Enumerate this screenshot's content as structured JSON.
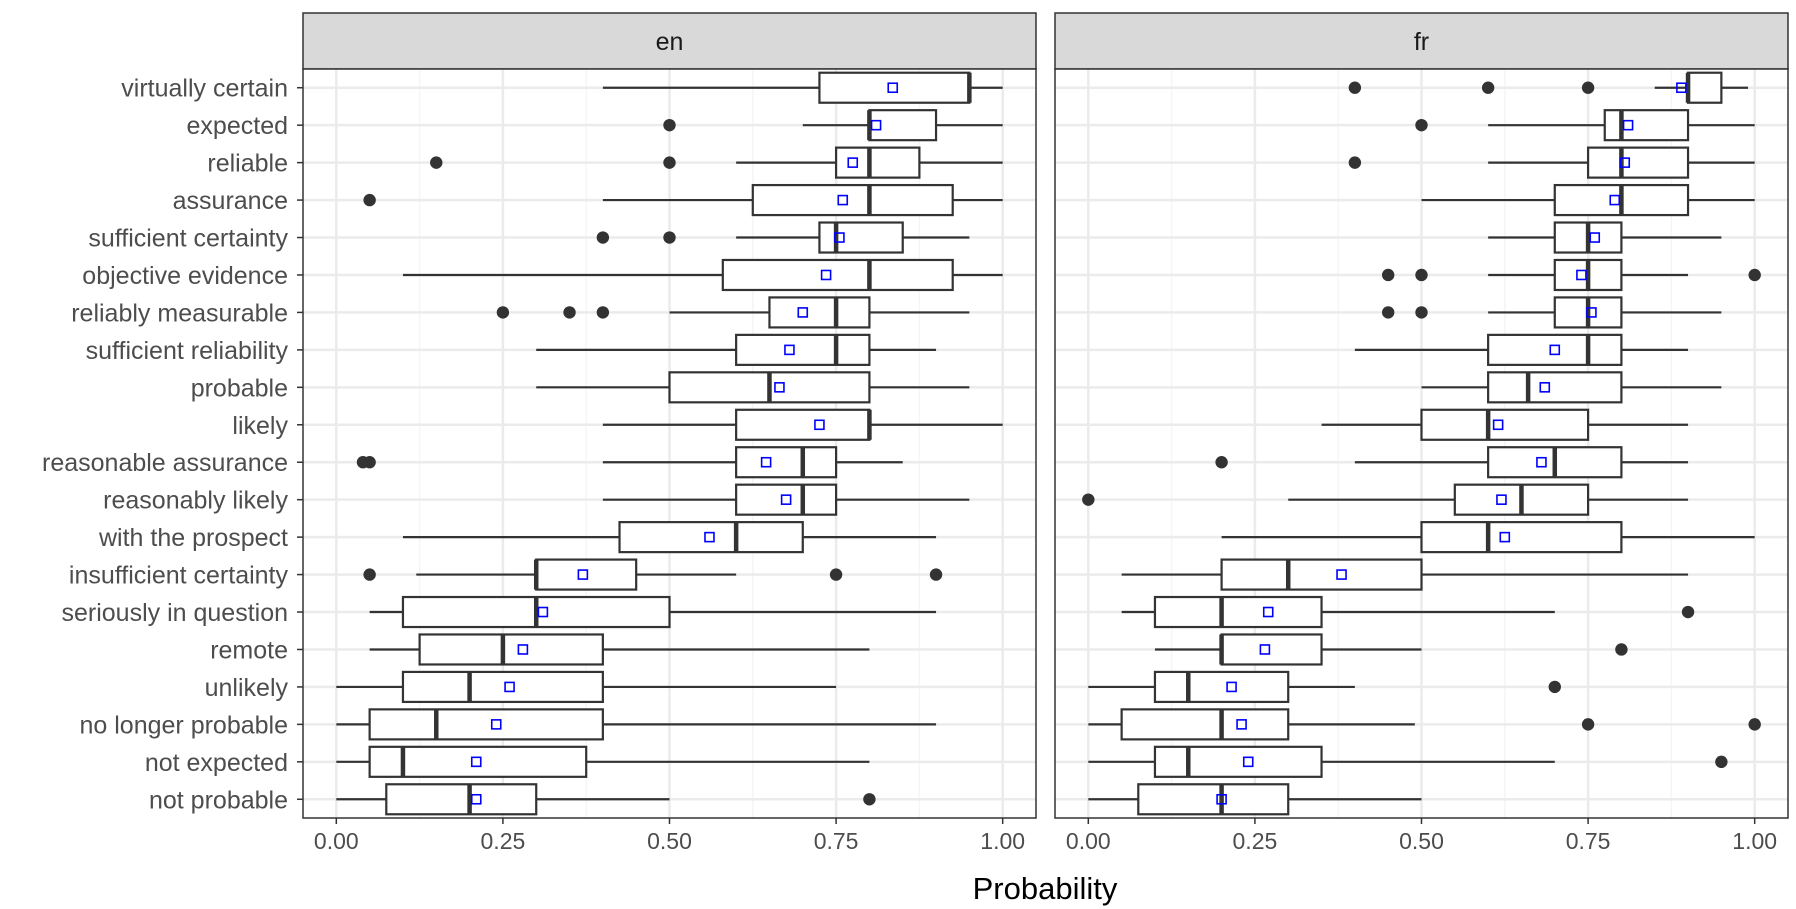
{
  "chart_data": {
    "type": "boxplot",
    "xlabel": "Probability",
    "xlim": [
      0,
      1
    ],
    "x_ticks": [
      0,
      0.25,
      0.5,
      0.75,
      1
    ],
    "x_tick_labels": [
      "0.00",
      "0.25",
      "0.50",
      "0.75",
      "1.00"
    ],
    "grid": true,
    "mean_marker": "blue open square",
    "categories": [
      "virtually certain",
      "expected",
      "reliable",
      "assurance",
      "sufficient certainty",
      "objective evidence",
      "reliably measurable",
      "sufficient reliability",
      "probable",
      "likely",
      "reasonable assurance",
      "reasonably likely",
      "with the prospect",
      "insufficient certainty",
      "seriously in question",
      "remote",
      "unlikely",
      "no longer probable",
      "not expected",
      "not probable"
    ],
    "panels": [
      {
        "label": "en",
        "boxes": [
          {
            "wl": 0.4,
            "q1": 0.725,
            "med": 0.95,
            "q3": 0.95,
            "wh": 1.0,
            "mean": 0.835,
            "out": []
          },
          {
            "wl": 0.7,
            "q1": 0.8,
            "med": 0.8,
            "q3": 0.9,
            "wh": 1.0,
            "mean": 0.81,
            "out": [
              0.5
            ]
          },
          {
            "wl": 0.6,
            "q1": 0.75,
            "med": 0.8,
            "q3": 0.875,
            "wh": 1.0,
            "mean": 0.775,
            "out": [
              0.15,
              0.5
            ]
          },
          {
            "wl": 0.4,
            "q1": 0.625,
            "med": 0.8,
            "q3": 0.925,
            "wh": 1.0,
            "mean": 0.76,
            "out": [
              0.05
            ]
          },
          {
            "wl": 0.6,
            "q1": 0.725,
            "med": 0.75,
            "q3": 0.85,
            "wh": 0.95,
            "mean": 0.755,
            "out": [
              0.4,
              0.5
            ]
          },
          {
            "wl": 0.1,
            "q1": 0.58,
            "med": 0.8,
            "q3": 0.925,
            "wh": 1.0,
            "mean": 0.735,
            "out": []
          },
          {
            "wl": 0.5,
            "q1": 0.65,
            "med": 0.75,
            "q3": 0.8,
            "wh": 0.95,
            "mean": 0.7,
            "out": [
              0.25,
              0.35,
              0.4
            ]
          },
          {
            "wl": 0.3,
            "q1": 0.6,
            "med": 0.75,
            "q3": 0.8,
            "wh": 0.9,
            "mean": 0.68,
            "out": []
          },
          {
            "wl": 0.3,
            "q1": 0.5,
            "med": 0.65,
            "q3": 0.8,
            "wh": 0.95,
            "mean": 0.665,
            "out": []
          },
          {
            "wl": 0.4,
            "q1": 0.6,
            "med": 0.8,
            "q3": 0.8,
            "wh": 1.0,
            "mean": 0.725,
            "out": []
          },
          {
            "wl": 0.4,
            "q1": 0.6,
            "med": 0.7,
            "q3": 0.75,
            "wh": 0.85,
            "mean": 0.645,
            "out": [
              0.04,
              0.05
            ]
          },
          {
            "wl": 0.4,
            "q1": 0.6,
            "med": 0.7,
            "q3": 0.75,
            "wh": 0.95,
            "mean": 0.675,
            "out": []
          },
          {
            "wl": 0.1,
            "q1": 0.425,
            "med": 0.6,
            "q3": 0.7,
            "wh": 0.9,
            "mean": 0.56,
            "out": []
          },
          {
            "wl": 0.12,
            "q1": 0.3,
            "med": 0.3,
            "q3": 0.45,
            "wh": 0.6,
            "mean": 0.37,
            "out": [
              0.05,
              0.75,
              0.9
            ]
          },
          {
            "wl": 0.05,
            "q1": 0.1,
            "med": 0.3,
            "q3": 0.5,
            "wh": 0.9,
            "mean": 0.31,
            "out": []
          },
          {
            "wl": 0.05,
            "q1": 0.125,
            "med": 0.25,
            "q3": 0.4,
            "wh": 0.8,
            "mean": 0.28,
            "out": []
          },
          {
            "wl": 0.0,
            "q1": 0.1,
            "med": 0.2,
            "q3": 0.4,
            "wh": 0.75,
            "mean": 0.26,
            "out": []
          },
          {
            "wl": 0.0,
            "q1": 0.05,
            "med": 0.15,
            "q3": 0.4,
            "wh": 0.9,
            "mean": 0.24,
            "out": []
          },
          {
            "wl": 0.0,
            "q1": 0.05,
            "med": 0.1,
            "q3": 0.375,
            "wh": 0.8,
            "mean": 0.21,
            "out": []
          },
          {
            "wl": 0.0,
            "q1": 0.075,
            "med": 0.2,
            "q3": 0.3,
            "wh": 0.5,
            "mean": 0.21,
            "out": [
              0.8
            ]
          }
        ]
      },
      {
        "label": "fr",
        "boxes": [
          {
            "wl": 0.85,
            "q1": 0.9,
            "med": 0.9,
            "q3": 0.95,
            "wh": 0.99,
            "mean": 0.89,
            "out": [
              0.4,
              0.6,
              0.75
            ]
          },
          {
            "wl": 0.6,
            "q1": 0.775,
            "med": 0.8,
            "q3": 0.9,
            "wh": 1.0,
            "mean": 0.81,
            "out": [
              0.5
            ]
          },
          {
            "wl": 0.6,
            "q1": 0.75,
            "med": 0.8,
            "q3": 0.9,
            "wh": 1.0,
            "mean": 0.805,
            "out": [
              0.4
            ]
          },
          {
            "wl": 0.5,
            "q1": 0.7,
            "med": 0.8,
            "q3": 0.9,
            "wh": 1.0,
            "mean": 0.79,
            "out": []
          },
          {
            "wl": 0.6,
            "q1": 0.7,
            "med": 0.75,
            "q3": 0.8,
            "wh": 0.95,
            "mean": 0.76,
            "out": []
          },
          {
            "wl": 0.6,
            "q1": 0.7,
            "med": 0.75,
            "q3": 0.8,
            "wh": 0.9,
            "mean": 0.74,
            "out": [
              0.45,
              0.5,
              1.0
            ]
          },
          {
            "wl": 0.6,
            "q1": 0.7,
            "med": 0.75,
            "q3": 0.8,
            "wh": 0.95,
            "mean": 0.755,
            "out": [
              0.45,
              0.5
            ]
          },
          {
            "wl": 0.4,
            "q1": 0.6,
            "med": 0.75,
            "q3": 0.8,
            "wh": 0.9,
            "mean": 0.7,
            "out": []
          },
          {
            "wl": 0.5,
            "q1": 0.6,
            "med": 0.66,
            "q3": 0.8,
            "wh": 0.95,
            "mean": 0.685,
            "out": []
          },
          {
            "wl": 0.35,
            "q1": 0.5,
            "med": 0.6,
            "q3": 0.75,
            "wh": 0.9,
            "mean": 0.615,
            "out": []
          },
          {
            "wl": 0.4,
            "q1": 0.6,
            "med": 0.7,
            "q3": 0.8,
            "wh": 0.9,
            "mean": 0.68,
            "out": [
              0.2
            ]
          },
          {
            "wl": 0.3,
            "q1": 0.55,
            "med": 0.65,
            "q3": 0.75,
            "wh": 0.9,
            "mean": 0.62,
            "out": [
              0.0
            ]
          },
          {
            "wl": 0.2,
            "q1": 0.5,
            "med": 0.6,
            "q3": 0.8,
            "wh": 1.0,
            "mean": 0.625,
            "out": []
          },
          {
            "wl": 0.05,
            "q1": 0.2,
            "med": 0.3,
            "q3": 0.5,
            "wh": 0.9,
            "mean": 0.38,
            "out": []
          },
          {
            "wl": 0.05,
            "q1": 0.1,
            "med": 0.2,
            "q3": 0.35,
            "wh": 0.7,
            "mean": 0.27,
            "out": [
              0.9
            ]
          },
          {
            "wl": 0.1,
            "q1": 0.2,
            "med": 0.2,
            "q3": 0.35,
            "wh": 0.5,
            "mean": 0.265,
            "out": [
              0.8
            ]
          },
          {
            "wl": 0.0,
            "q1": 0.1,
            "med": 0.15,
            "q3": 0.3,
            "wh": 0.4,
            "mean": 0.215,
            "out": [
              0.7
            ]
          },
          {
            "wl": 0.0,
            "q1": 0.05,
            "med": 0.2,
            "q3": 0.3,
            "wh": 0.49,
            "mean": 0.23,
            "out": [
              0.75,
              1.0
            ]
          },
          {
            "wl": 0.0,
            "q1": 0.1,
            "med": 0.15,
            "q3": 0.35,
            "wh": 0.7,
            "mean": 0.24,
            "out": [
              0.95
            ]
          },
          {
            "wl": 0.0,
            "q1": 0.075,
            "med": 0.2,
            "q3": 0.3,
            "wh": 0.5,
            "mean": 0.2,
            "out": []
          }
        ]
      }
    ]
  },
  "colors": {
    "panel_strip": "#d9d9d9",
    "frame": "#333333",
    "grid_major": "#ebebeb",
    "grid_minor": "#f5f5f5",
    "box_line": "#333333",
    "outlier": "#333333",
    "mean_marker": "#0000ff"
  }
}
